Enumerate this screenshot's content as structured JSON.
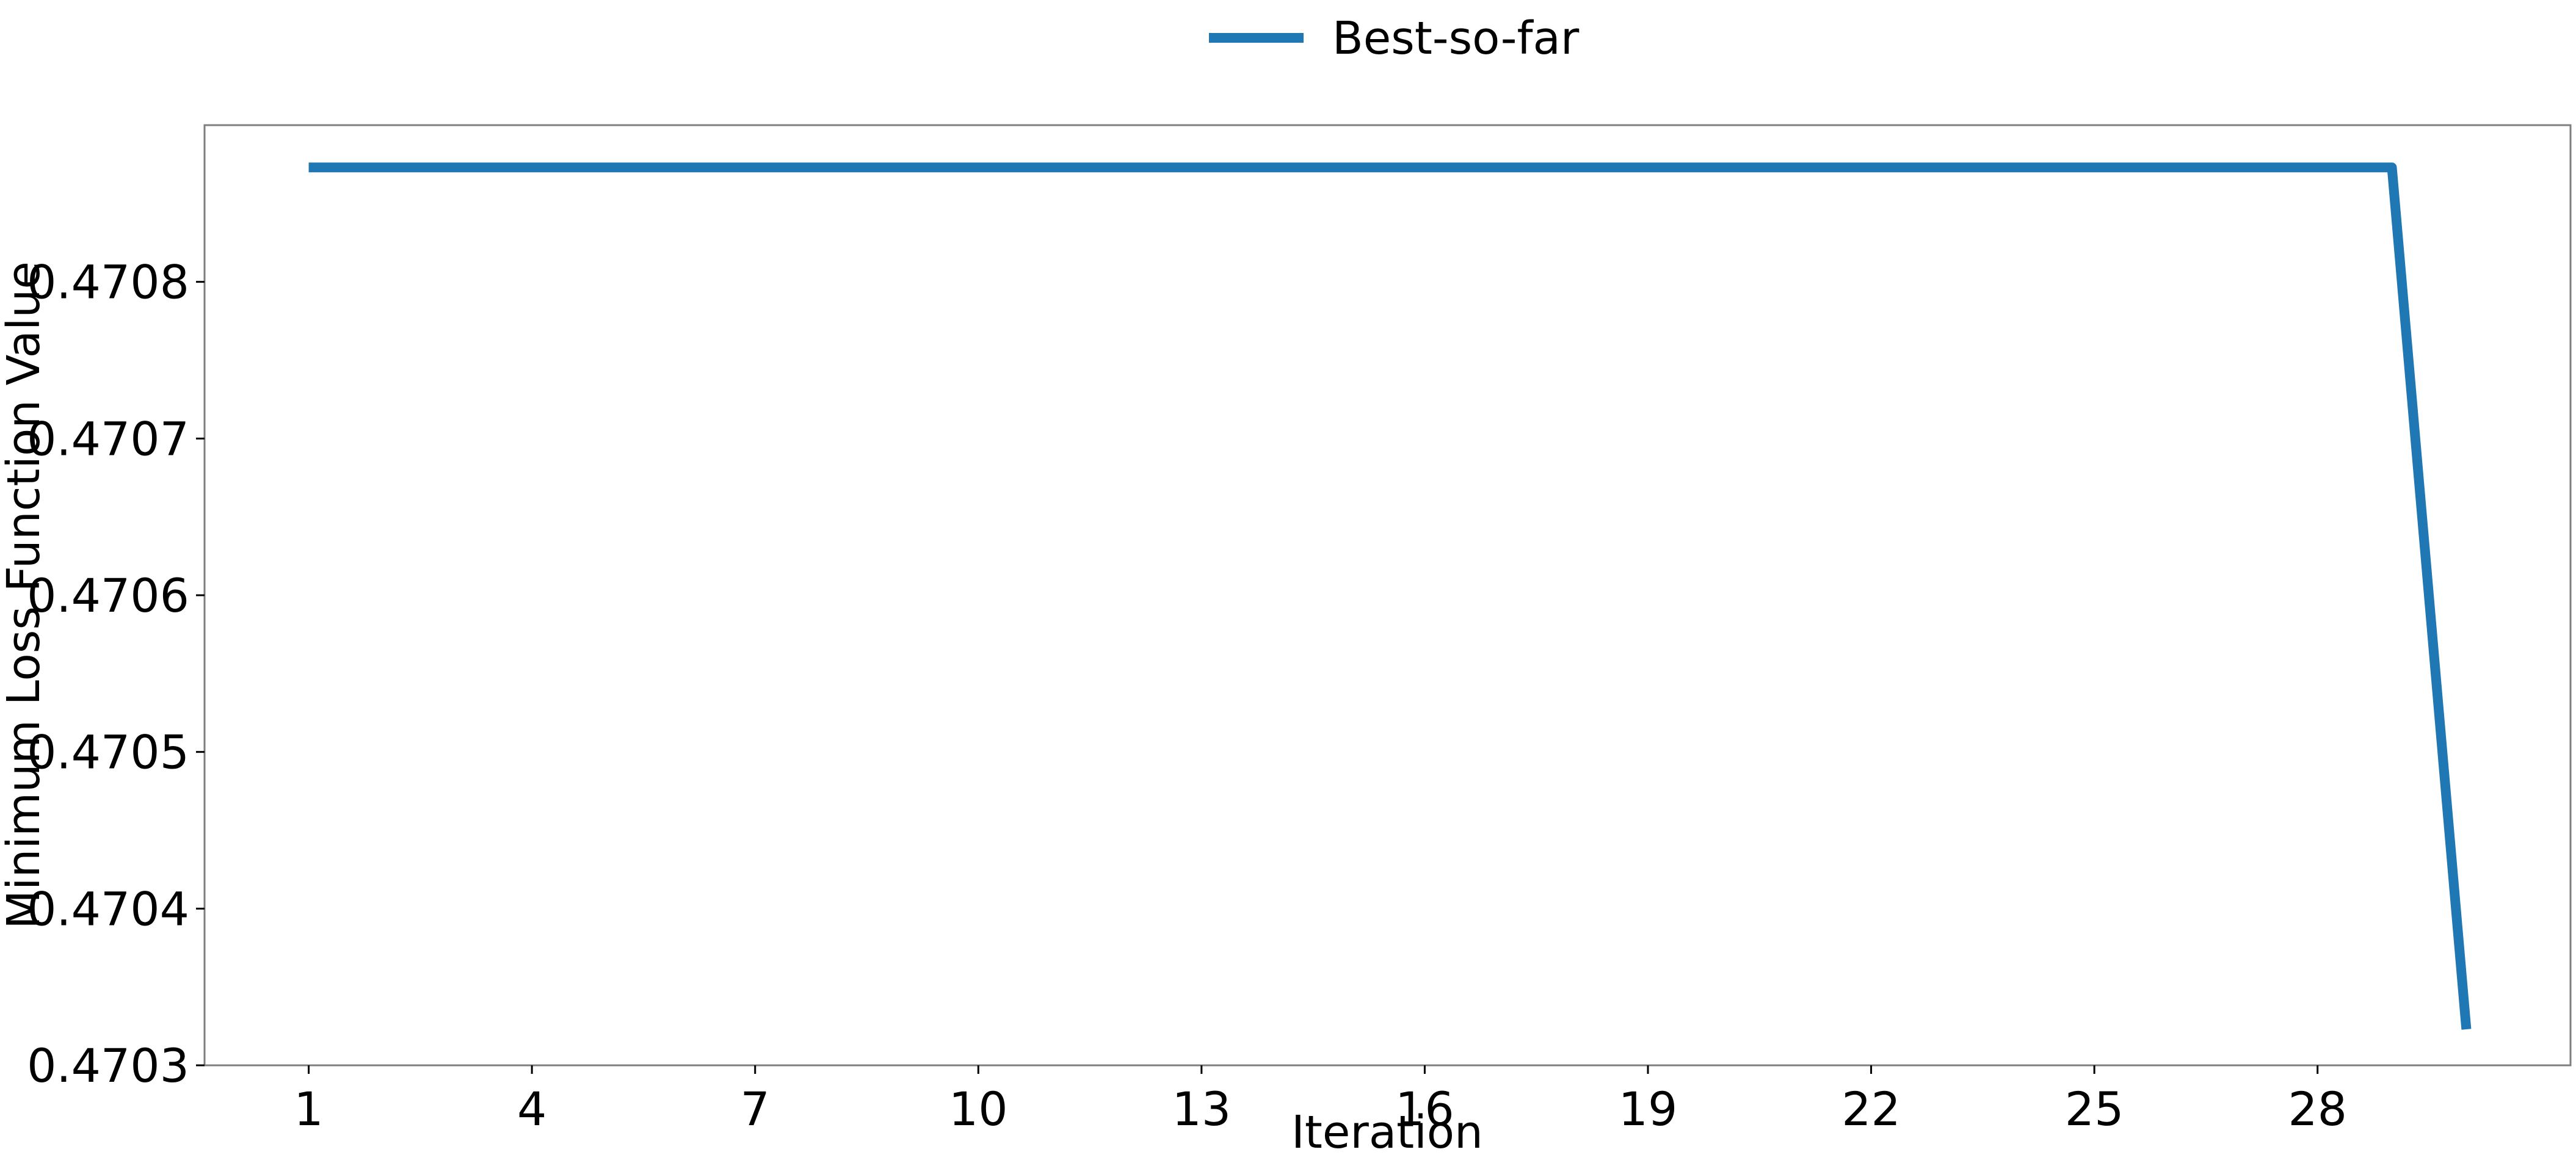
{
  "chart_data": {
    "type": "line",
    "legend": {
      "position": "top-center",
      "entries": [
        "Best-so-far"
      ]
    },
    "xlabel": "Iteration",
    "ylabel": "Minimum Loss Function Value",
    "x_ticks": [
      "1",
      "4",
      "7",
      "10",
      "13",
      "16",
      "19",
      "22",
      "25",
      "28"
    ],
    "y_ticks": [
      "0.4703",
      "0.4704",
      "0.4705",
      "0.4706",
      "0.4707",
      "0.4708"
    ],
    "xlim": [
      -0.4,
      31.4
    ],
    "ylim": [
      0.4703,
      0.4709
    ],
    "grid": false,
    "series": [
      {
        "name": "Best-so-far",
        "color": "#1f77b4",
        "x": [
          1,
          2,
          3,
          4,
          5,
          6,
          7,
          8,
          9,
          10,
          11,
          12,
          13,
          14,
          15,
          16,
          17,
          18,
          19,
          20,
          21,
          22,
          23,
          24,
          25,
          26,
          27,
          28,
          29,
          30
        ],
        "y": [
          0.470873,
          0.470873,
          0.470873,
          0.470873,
          0.470873,
          0.470873,
          0.470873,
          0.470873,
          0.470873,
          0.470873,
          0.470873,
          0.470873,
          0.470873,
          0.470873,
          0.470873,
          0.470873,
          0.470873,
          0.470873,
          0.470873,
          0.470873,
          0.470873,
          0.470873,
          0.470873,
          0.470873,
          0.470873,
          0.470873,
          0.470873,
          0.470873,
          0.470873,
          0.470323
        ]
      }
    ]
  }
}
